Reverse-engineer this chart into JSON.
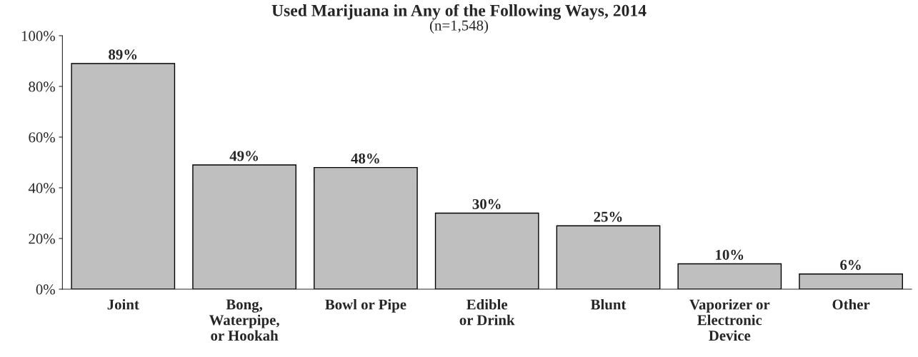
{
  "chart_data": {
    "type": "bar",
    "title": "Used Marijuana in Any of the Following Ways, 2014",
    "subtitle": "(n=1,548)",
    "categories": [
      "Joint",
      "Bong,\nWaterpipe,\nor Hookah",
      "Bowl or Pipe",
      "Edible\nor Drink",
      "Blunt",
      "Vaporizer or\nElectronic\nDevice",
      "Other"
    ],
    "values": [
      89,
      49,
      48,
      30,
      25,
      10,
      6
    ],
    "color": "#bfbfbf",
    "value_labels": [
      "89%",
      "49%",
      "48%",
      "30%",
      "25%",
      "10%",
      "6%"
    ],
    "ylim": [
      0,
      100
    ],
    "yticks": [
      {
        "value": 0,
        "label": "0%"
      },
      {
        "value": 20,
        "label": "20%"
      },
      {
        "value": 40,
        "label": "40%"
      },
      {
        "value": 60,
        "label": "60%"
      },
      {
        "value": 80,
        "label": "80%"
      },
      {
        "value": 100,
        "label": "100%"
      }
    ],
    "grid": false,
    "legend": false
  }
}
